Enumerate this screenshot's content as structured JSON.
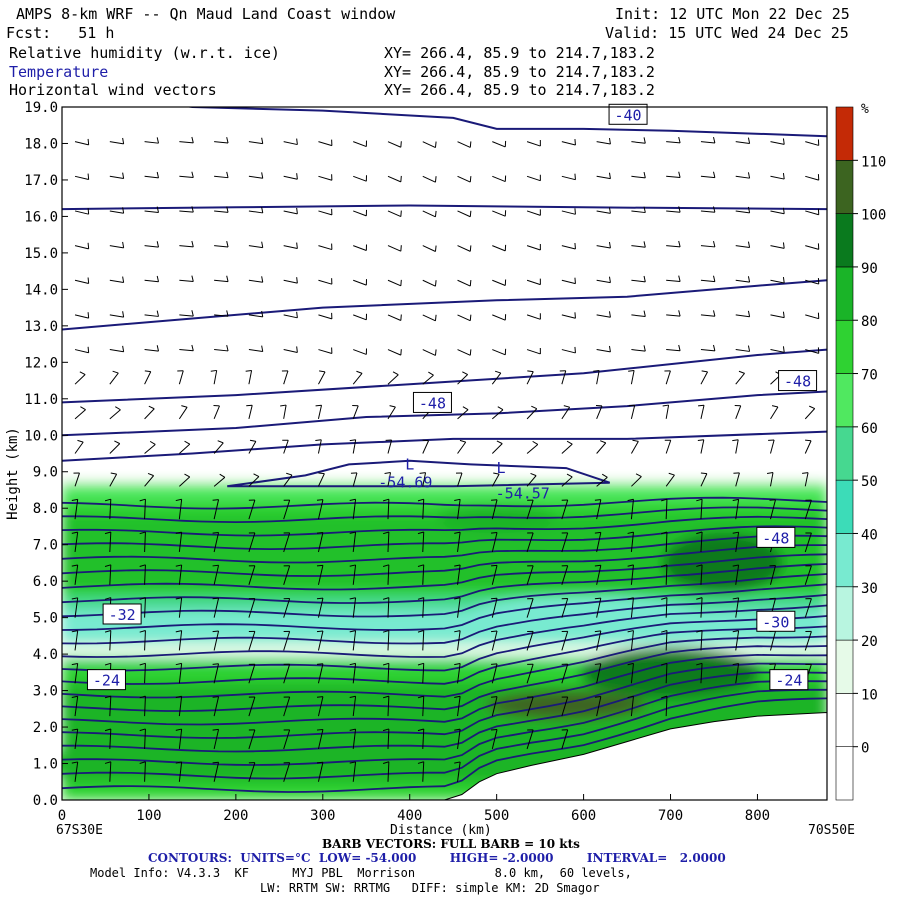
{
  "header": {
    "title": "AMPS 8-km WRF -- Qn Maud Land Coast window",
    "init": "Init: 12 UTC Mon 22 Dec 25",
    "fcst": "Fcst:   51 h",
    "valid": "Valid: 15 UTC Wed 24 Dec 25",
    "fields": [
      {
        "name": "Relative humidity (w.r.t. ice)",
        "xy": "XY= 266.4, 85.9 to 214.7,183.2"
      },
      {
        "name": "Temperature",
        "xy": "XY= 266.4, 85.9 to 214.7,183.2"
      },
      {
        "name": "Horizontal wind vectors",
        "xy": "XY= 266.4, 85.9 to 214.7,183.2"
      }
    ]
  },
  "colors": {
    "contour": "#1a1a78",
    "label_text": "#1e1ea8",
    "barb": "#000000",
    "terrain": "#ffffff"
  },
  "chart_data": {
    "type": "heatmap",
    "xlabel": "Distance (km)",
    "ylabel": "Height (km)",
    "xlim": [
      0,
      880
    ],
    "ylim": [
      0,
      19
    ],
    "xticks": [
      0,
      100,
      200,
      300,
      400,
      500,
      600,
      700,
      800
    ],
    "yticks": [
      0,
      1,
      2,
      3,
      4,
      5,
      6,
      7,
      8,
      9,
      10,
      11,
      12,
      13,
      14,
      15,
      16,
      17,
      18,
      19
    ],
    "ytick_labels": [
      "0.0",
      "1.0",
      "2.0",
      "3.0",
      "4.0",
      "5.0",
      "6.0",
      "7.0",
      "8.0",
      "9.0",
      "10.0",
      "11.0",
      "12.0",
      "13.0",
      "14.0",
      "15.0",
      "16.0",
      "17.0",
      "18.0",
      "19.0"
    ],
    "x_start_label": "67S30E",
    "x_end_label": "70S50E",
    "colorbar": {
      "unit": "%",
      "labels": [
        0,
        10,
        20,
        30,
        40,
        50,
        60,
        70,
        80,
        90,
        100,
        110
      ],
      "colors": [
        "#ffffff",
        "#ffffff",
        "#e6fae8",
        "#b8f5e0",
        "#78ead0",
        "#3cdcb8",
        "#46d890",
        "#50e860",
        "#2fd232",
        "#1ab428",
        "#0a7a1e",
        "#3c6420",
        "#c42a06"
      ]
    },
    "terrain_profile": [
      [
        0,
        0
      ],
      [
        440,
        0
      ],
      [
        460,
        0.15
      ],
      [
        480,
        0.5
      ],
      [
        500,
        0.72
      ],
      [
        540,
        0.95
      ],
      [
        600,
        1.25
      ],
      [
        650,
        1.6
      ],
      [
        700,
        1.95
      ],
      [
        750,
        2.15
      ],
      [
        800,
        2.3
      ],
      [
        880,
        2.4
      ]
    ],
    "contour_labels": [
      {
        "x": 650,
        "y": 18.8,
        "text": "-40"
      },
      {
        "x": 425,
        "y": 10.9,
        "text": "-48"
      },
      {
        "x": 845,
        "y": 11.5,
        "text": "-48"
      },
      {
        "x": 820,
        "y": 7.2,
        "text": "-48"
      },
      {
        "x": 68,
        "y": 5.1,
        "text": "-32"
      },
      {
        "x": 820,
        "y": 4.9,
        "text": "-30"
      },
      {
        "x": 50,
        "y": 3.3,
        "text": "-24"
      },
      {
        "x": 835,
        "y": 3.3,
        "text": "-24"
      }
    ],
    "extrema": [
      {
        "x": 400,
        "y": 9.2,
        "text": "L"
      },
      {
        "x": 395,
        "y": 8.7,
        "text": "-54.69"
      },
      {
        "x": 505,
        "y": 9.1,
        "text": "L"
      },
      {
        "x": 530,
        "y": 8.4,
        "text": "-54.57"
      }
    ],
    "contours": {
      "units": "°C",
      "low": "-54.000",
      "high": "-2.0000",
      "interval": "2.0000"
    },
    "barb_note": "BARB VECTORS: FULL BARB = 10 kts"
  },
  "footer": {
    "barb_line": "BARB VECTORS: FULL BARB = 10 kts",
    "contours_prefix": "CONTOURS:  UNITS=°C  LOW= -54.000        HIGH= -2.0000        INTERVAL=   2.0000",
    "model_info": "Model Info: V4.3.3  KF      MYJ PBL  Morrison           8.0 km,  60 levels,",
    "physics": "LW: RRTM SW: RRTMG   DIFF: simple KM: 2D Smagor"
  }
}
